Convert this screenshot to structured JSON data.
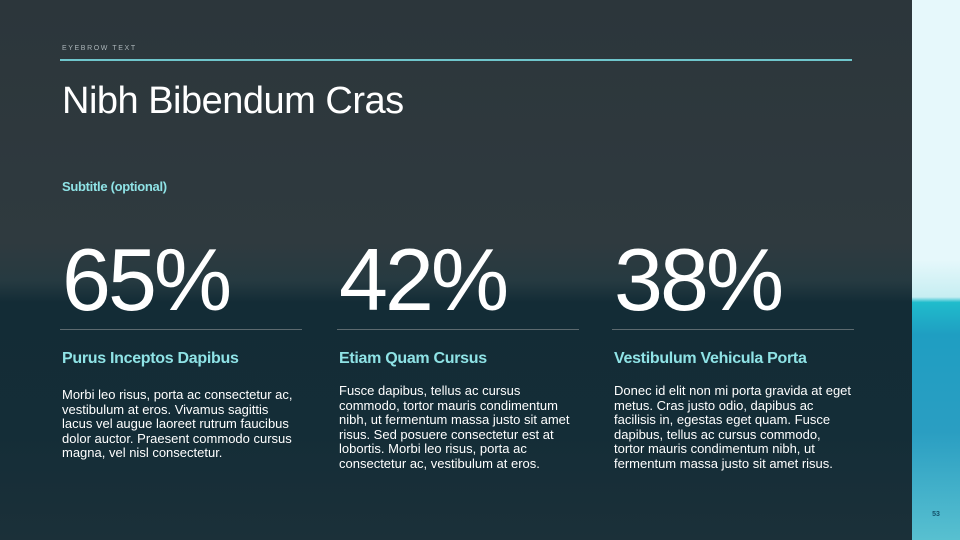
{
  "eyebrow": "EYEBROW TEXT",
  "title": "Nibh Bibendum Cras",
  "subtitle": "Subtitle (optional)",
  "columns": [
    {
      "stat": "65%",
      "heading": "Purus Inceptos Dapibus",
      "body": "Morbi leo risus, porta ac consectetur ac, vestibulum at eros. Vivamus sagittis lacus vel augue laoreet rutrum faucibus dolor auctor. Praesent commodo cursus magna, vel nisl consectetur."
    },
    {
      "stat": "42%",
      "heading": "Etiam Quam Cursus",
      "body": "Fusce dapibus, tellus ac cursus commodo, tortor mauris condimentum nibh, ut fermentum massa justo sit amet risus. Sed posuere consectetur est at lobortis. Morbi leo risus, porta ac consectetur ac, vestibulum at eros."
    },
    {
      "stat": "38%",
      "heading": "Vestibulum Vehicula Porta",
      "body": "Donec id elit non mi porta gravida at eget metus. Cras justo odio, dapibus ac facilisis in, egestas eget quam. Fusce dapibus, tellus ac cursus commodo, tortor mauris condimentum nibh, ut fermentum massa justo sit amet risus."
    }
  ],
  "page_number": "53",
  "colors": {
    "accent": "#8fe3e6",
    "rule": "#6fc6cc",
    "background": "#2c363b"
  }
}
